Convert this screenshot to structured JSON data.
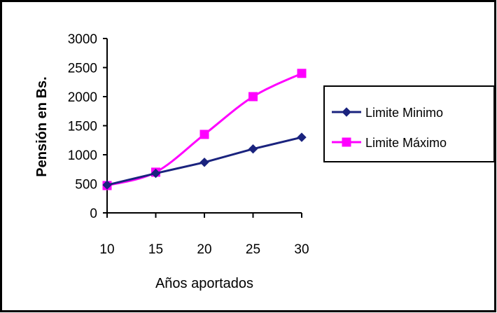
{
  "chart_data": {
    "type": "line",
    "title": "",
    "xlabel": "Años aportados",
    "ylabel": "Pensión en Bs.",
    "x": [
      10,
      15,
      20,
      25,
      30
    ],
    "xticks": [
      "10",
      "15",
      "20",
      "25",
      "30"
    ],
    "yticks": [
      "0",
      "500",
      "1000",
      "1500",
      "2000",
      "2500",
      "3000"
    ],
    "ylim": [
      0,
      3000
    ],
    "grid": false,
    "legend_position": "right",
    "series": [
      {
        "name": "Limite Minimo",
        "values": [
          480,
          680,
          870,
          1100,
          1300
        ],
        "color": "#1a237e",
        "marker": "diamond"
      },
      {
        "name": "Limite Máximo",
        "values": [
          470,
          700,
          1350,
          2000,
          2400
        ],
        "color": "#ff00ff",
        "marker": "square"
      }
    ]
  }
}
